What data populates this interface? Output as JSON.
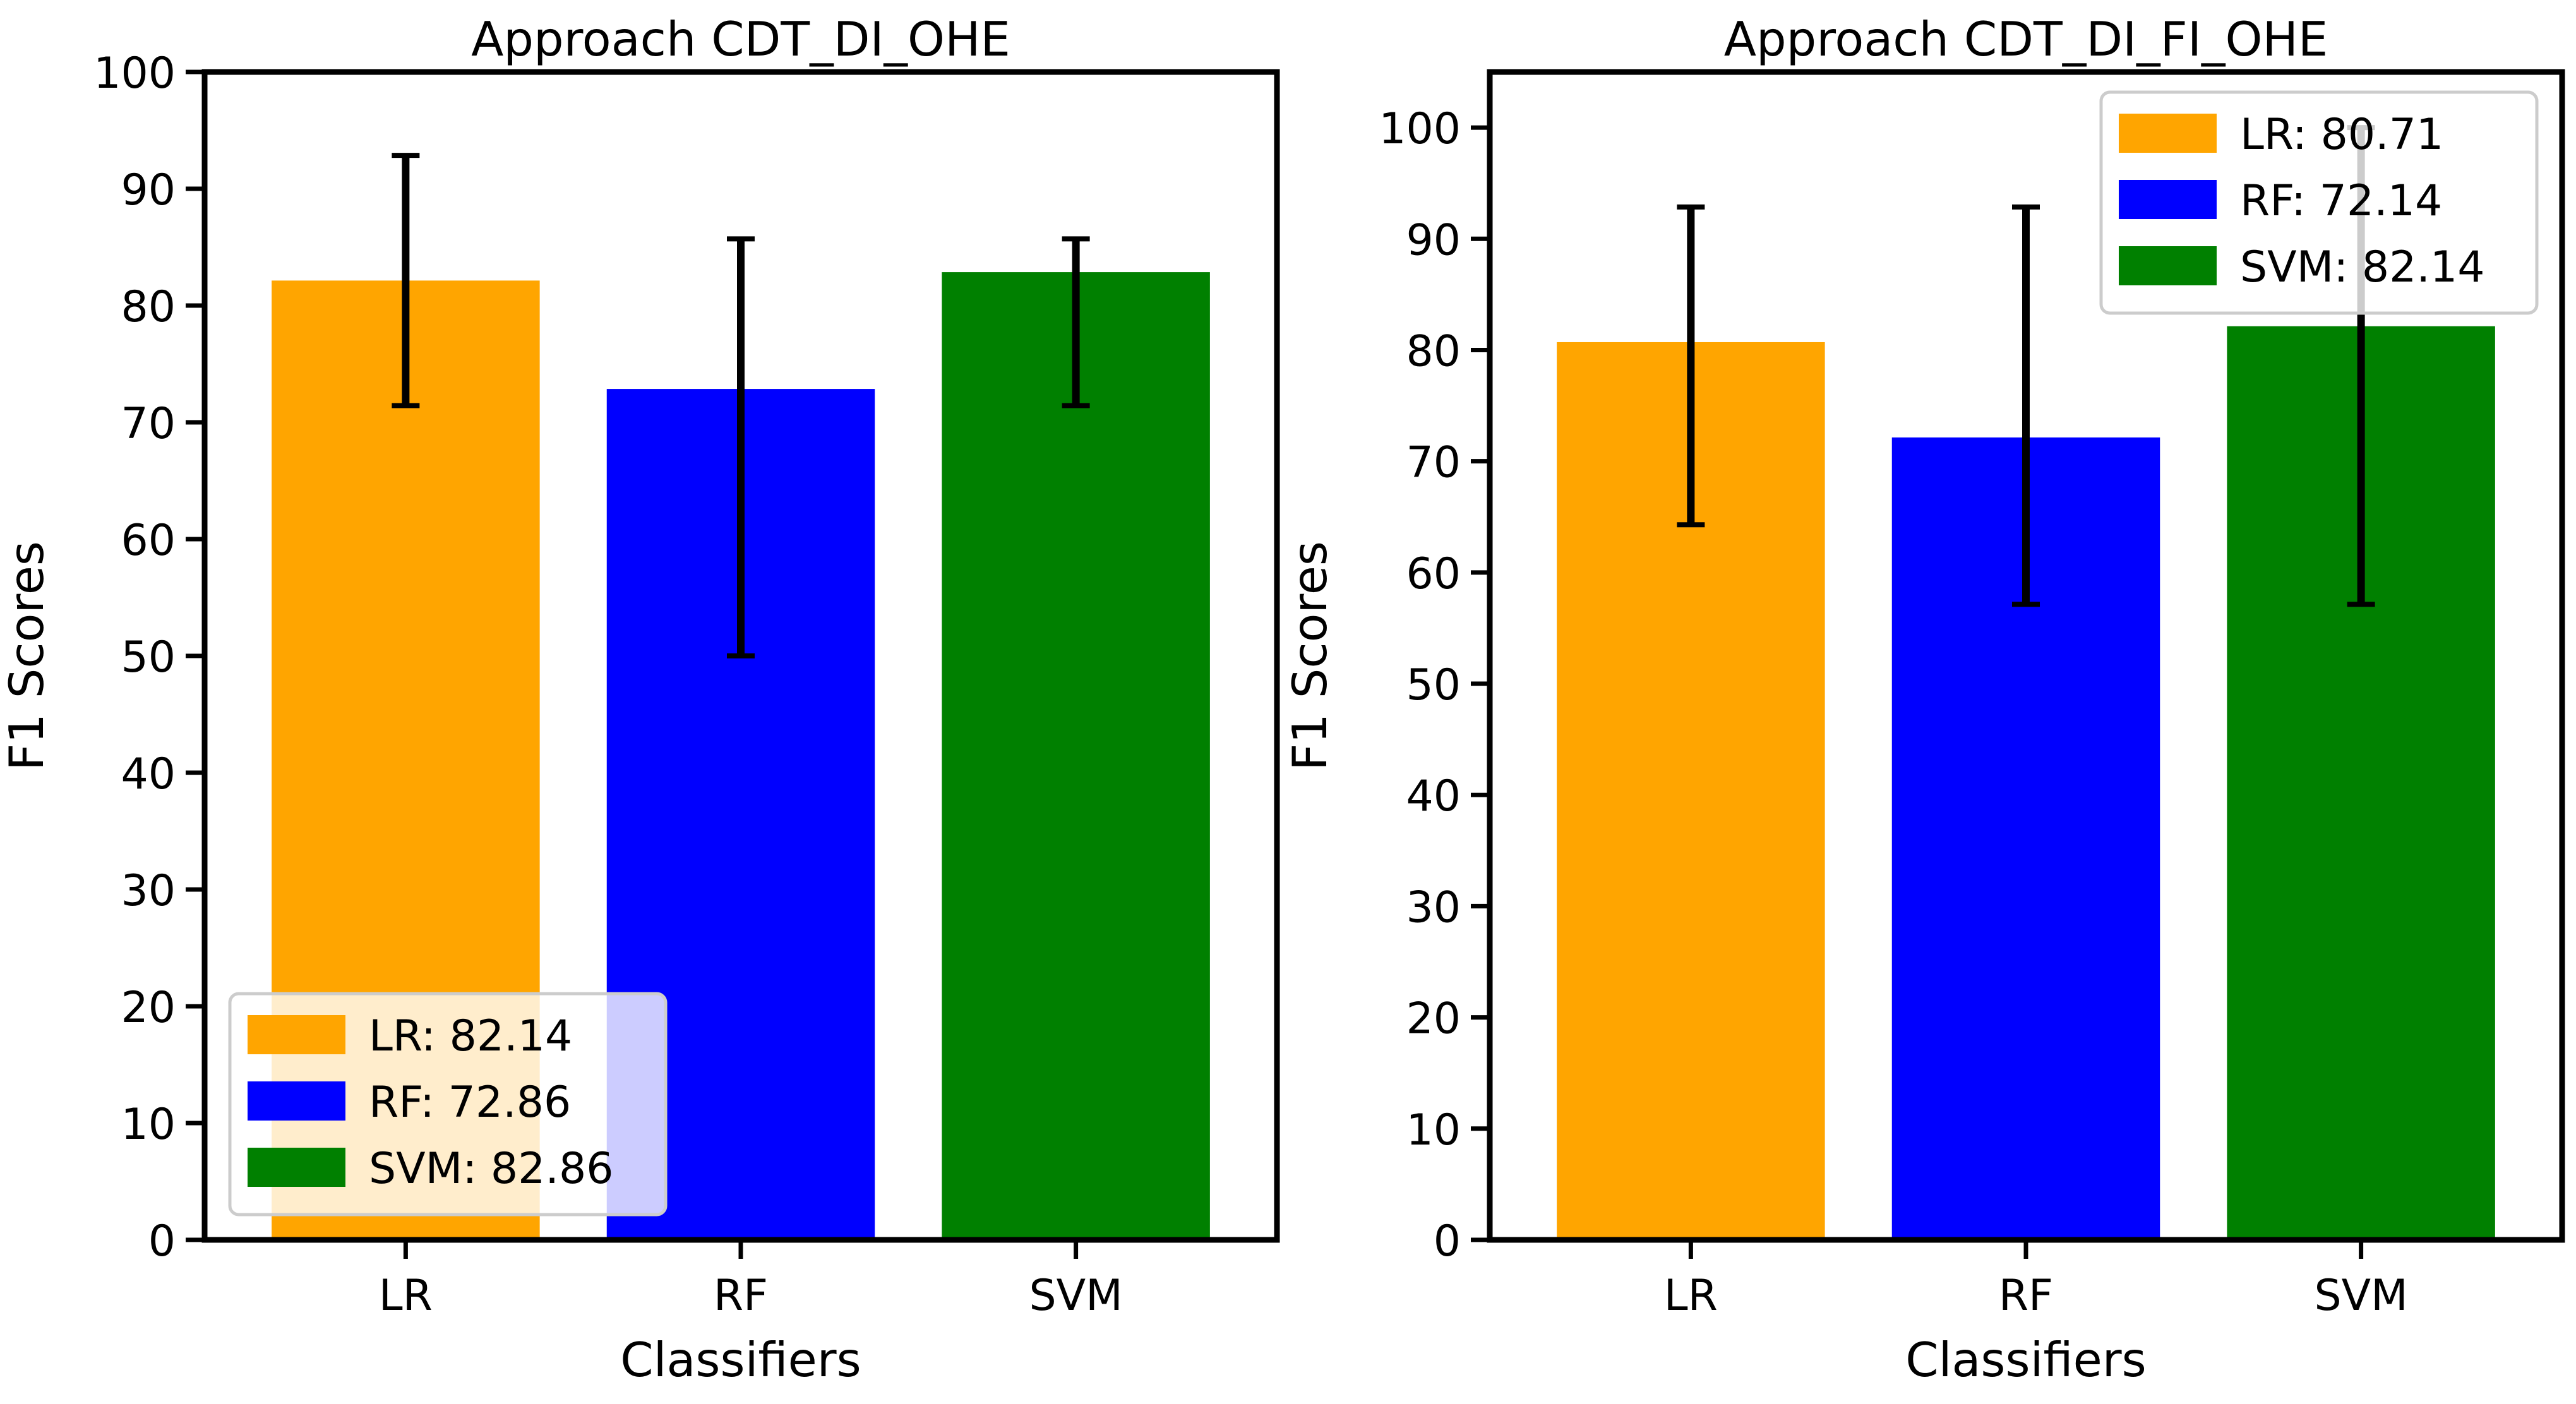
{
  "chart_data": [
    {
      "type": "bar",
      "title": "Approach CDT_DI_OHE",
      "xlabel": "Classifiers",
      "ylabel": "F1 Scores",
      "categories": [
        "LR",
        "RF",
        "SVM"
      ],
      "values": [
        82.14,
        72.86,
        82.86
      ],
      "error_low": [
        71.43,
        50.0,
        71.43
      ],
      "error_high": [
        92.86,
        85.71,
        85.71
      ],
      "colors": [
        "#FFA500",
        "#0000FF",
        "#008000"
      ],
      "ylim": [
        0,
        100
      ],
      "yticks": [
        0,
        10,
        20,
        30,
        40,
        50,
        60,
        70,
        80,
        90,
        100
      ],
      "legend_position": "lower-left",
      "legend": [
        "LR: 82.14",
        "RF: 72.86",
        "SVM: 82.86"
      ],
      "grid": false
    },
    {
      "type": "bar",
      "title": "Approach CDT_DI_FI_OHE",
      "xlabel": "Classifiers",
      "ylabel": "F1 Scores",
      "categories": [
        "LR",
        "RF",
        "SVM"
      ],
      "values": [
        80.71,
        72.14,
        82.14
      ],
      "error_low": [
        64.29,
        57.14,
        57.14
      ],
      "error_high": [
        92.86,
        92.86,
        100.0
      ],
      "colors": [
        "#FFA500",
        "#0000FF",
        "#008000"
      ],
      "ylim": [
        0,
        105
      ],
      "yticks": [
        0,
        10,
        20,
        30,
        40,
        50,
        60,
        70,
        80,
        90,
        100
      ],
      "legend_position": "upper-right",
      "legend": [
        "LR: 80.71",
        "RF: 72.14",
        "SVM: 82.14"
      ],
      "grid": false
    }
  ]
}
